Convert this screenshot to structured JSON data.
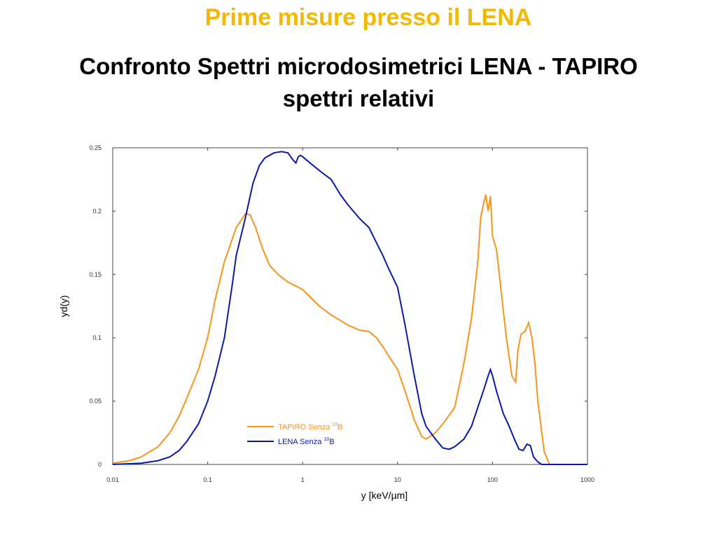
{
  "title": "Prime misure presso il LENA",
  "subtitle_line1": "Confronto Spettri microdosimetrici LENA - TAPIRO",
  "subtitle_line2": "spettri relativi",
  "colors": {
    "title": "#F5B800",
    "tapiro": "#F7941D",
    "lena": "#0A1AA8"
  },
  "chart_data": {
    "type": "line",
    "xscale": "log",
    "xlabel": "y [keV/µm]",
    "ylabel": "yd(y)",
    "xlim": [
      0.01,
      1000
    ],
    "ylim": [
      0,
      0.25
    ],
    "x_ticks": [
      "0.01",
      "0.1",
      "1",
      "10",
      "100",
      "1000"
    ],
    "y_ticks": [
      "0",
      "0.05",
      "0.1",
      "0.15",
      "0.2",
      "0.25"
    ],
    "legend_position": "lower-center",
    "series": [
      {
        "name": "TAPIRO Senza ¹⁰B",
        "legend_main": "TAPIRO Senza ",
        "legend_sup": "10",
        "legend_end": "B",
        "color": "#F7941D",
        "x": [
          0.01,
          0.015,
          0.02,
          0.03,
          0.04,
          0.05,
          0.06,
          0.08,
          0.1,
          0.12,
          0.15,
          0.2,
          0.25,
          0.28,
          0.32,
          0.38,
          0.45,
          0.55,
          0.7,
          1,
          1.5,
          2,
          3,
          4,
          5,
          6,
          7,
          8,
          10,
          12,
          15,
          18,
          20,
          25,
          30,
          40,
          50,
          60,
          70,
          75,
          80,
          85,
          90,
          95,
          100,
          110,
          120,
          140,
          160,
          175,
          185,
          200,
          220,
          240,
          260,
          280,
          300,
          350,
          400,
          500,
          1000
        ],
        "y": [
          0.001,
          0.003,
          0.006,
          0.014,
          0.025,
          0.038,
          0.052,
          0.075,
          0.1,
          0.13,
          0.16,
          0.187,
          0.198,
          0.197,
          0.187,
          0.17,
          0.157,
          0.15,
          0.144,
          0.138,
          0.125,
          0.118,
          0.11,
          0.106,
          0.105,
          0.1,
          0.093,
          0.086,
          0.075,
          0.058,
          0.035,
          0.022,
          0.02,
          0.025,
          0.032,
          0.045,
          0.08,
          0.115,
          0.16,
          0.195,
          0.205,
          0.213,
          0.2,
          0.212,
          0.18,
          0.17,
          0.145,
          0.1,
          0.07,
          0.065,
          0.09,
          0.103,
          0.105,
          0.112,
          0.1,
          0.08,
          0.05,
          0.01,
          0.0,
          0.0,
          0.0
        ]
      },
      {
        "name": "LENA Senza ¹⁰B",
        "legend_main": "LENA Senza ",
        "legend_sup": "10",
        "legend_end": "B",
        "color": "#0A1AA8",
        "x": [
          0.01,
          0.02,
          0.03,
          0.04,
          0.05,
          0.06,
          0.08,
          0.1,
          0.12,
          0.15,
          0.18,
          0.2,
          0.25,
          0.3,
          0.35,
          0.4,
          0.5,
          0.6,
          0.7,
          0.8,
          0.85,
          0.9,
          0.95,
          1,
          1.2,
          1.5,
          2,
          2.5,
          3,
          4,
          5,
          6,
          7,
          8,
          10,
          12,
          15,
          18,
          20,
          25,
          30,
          35,
          40,
          50,
          60,
          70,
          80,
          90,
          95,
          100,
          110,
          130,
          150,
          170,
          190,
          210,
          230,
          250,
          270,
          300,
          330,
          1000
        ],
        "y": [
          0.0,
          0.001,
          0.003,
          0.006,
          0.011,
          0.018,
          0.032,
          0.05,
          0.07,
          0.1,
          0.14,
          0.165,
          0.195,
          0.222,
          0.236,
          0.242,
          0.246,
          0.247,
          0.246,
          0.24,
          0.238,
          0.243,
          0.244,
          0.243,
          0.238,
          0.232,
          0.225,
          0.213,
          0.205,
          0.194,
          0.187,
          0.175,
          0.165,
          0.155,
          0.14,
          0.11,
          0.07,
          0.04,
          0.03,
          0.02,
          0.013,
          0.012,
          0.014,
          0.02,
          0.03,
          0.045,
          0.058,
          0.07,
          0.075,
          0.07,
          0.058,
          0.04,
          0.03,
          0.02,
          0.012,
          0.011,
          0.016,
          0.015,
          0.006,
          0.002,
          0.0,
          0.0
        ]
      }
    ]
  }
}
